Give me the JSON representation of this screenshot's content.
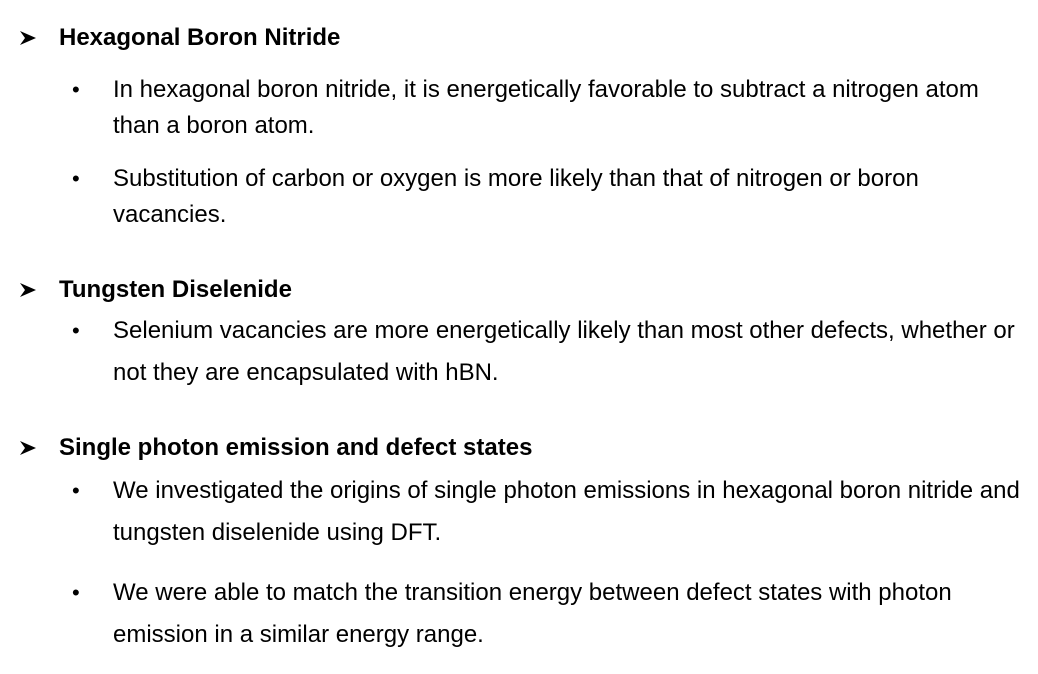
{
  "sections": [
    {
      "heading": "Hexagonal Boron Nitride",
      "bullets": [
        "In hexagonal boron nitride, it is energetically favorable to subtract a nitrogen atom than a boron atom.",
        "Substitution of carbon or oxygen is more likely than that of nitrogen or boron vacancies."
      ]
    },
    {
      "heading": "Tungsten Diselenide",
      "bullets": [
        "Selenium vacancies are more energetically likely than most other defects, whether or not they are encapsulated with hBN."
      ]
    },
    {
      "heading": "Single photon emission and defect states",
      "bullets": [
        "We investigated the origins of single photon emissions in hexagonal boron nitride and tungsten diselenide using DFT.",
        "We were able to match the transition energy between defect states with photon emission in a similar energy range."
      ]
    }
  ],
  "glyphs": {
    "bullet": "•"
  },
  "icons": {
    "heading_marker": "arrowhead-icon"
  }
}
